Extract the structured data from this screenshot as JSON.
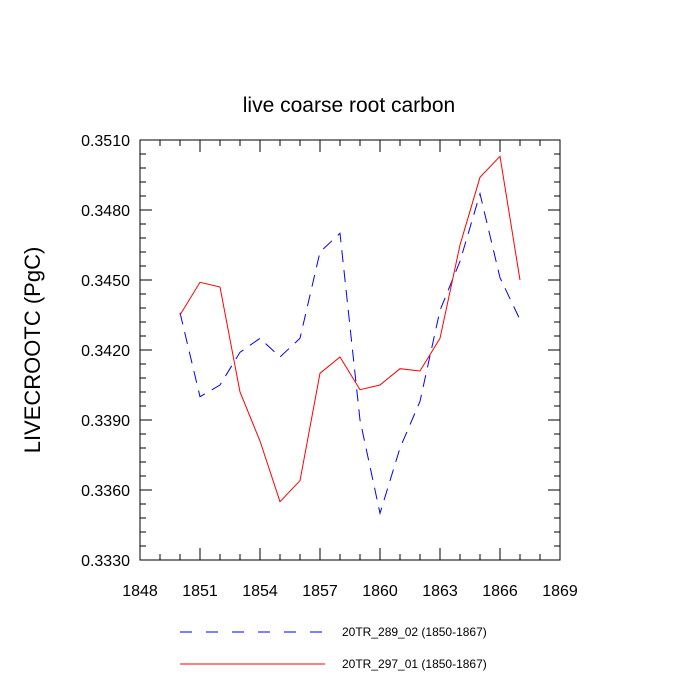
{
  "chart_data": {
    "type": "line",
    "title": "live coarse root carbon",
    "xlabel": "",
    "ylabel": "LIVECROOTC  (PgC)",
    "xlim": [
      1848,
      1869
    ],
    "ylim": [
      0.333,
      0.351
    ],
    "xticks": [
      1848,
      1851,
      1854,
      1857,
      1860,
      1863,
      1866,
      1869
    ],
    "xtick_labels": [
      "1848",
      "1851",
      "1854",
      "1857",
      "1860",
      "1863",
      "1866",
      "1869"
    ],
    "yticks": [
      0.333,
      0.336,
      0.339,
      0.342,
      0.345,
      0.348,
      0.351
    ],
    "ytick_labels": [
      "0.3330",
      "0.3360",
      "0.3390",
      "0.3420",
      "0.3450",
      "0.3480",
      "0.3510"
    ],
    "grid": false,
    "legend_position": "bottom",
    "x": [
      1850,
      1851,
      1852,
      1853,
      1854,
      1855,
      1856,
      1857,
      1858,
      1859,
      1860,
      1861,
      1862,
      1863,
      1864,
      1865,
      1866,
      1867
    ],
    "series": [
      {
        "name": "20TR_289_02 (1850-1867)",
        "color": "#0000ff",
        "dash": "dashed",
        "values": [
          0.3436,
          0.34,
          0.3405,
          0.3419,
          0.3425,
          0.3417,
          0.3425,
          0.3462,
          0.347,
          0.339,
          0.335,
          0.3378,
          0.3398,
          0.3437,
          0.3458,
          0.3487,
          0.3451,
          0.3433
        ]
      },
      {
        "name": "20TR_297_01 (1850-1867)",
        "color": "#ff0000",
        "dash": "solid",
        "values": [
          0.3435,
          0.3449,
          0.3447,
          0.3402,
          0.3381,
          0.3355,
          0.3364,
          0.341,
          0.3417,
          0.3403,
          0.3405,
          0.3412,
          0.3411,
          0.3425,
          0.3465,
          0.3494,
          0.3503,
          0.345
        ]
      }
    ]
  }
}
